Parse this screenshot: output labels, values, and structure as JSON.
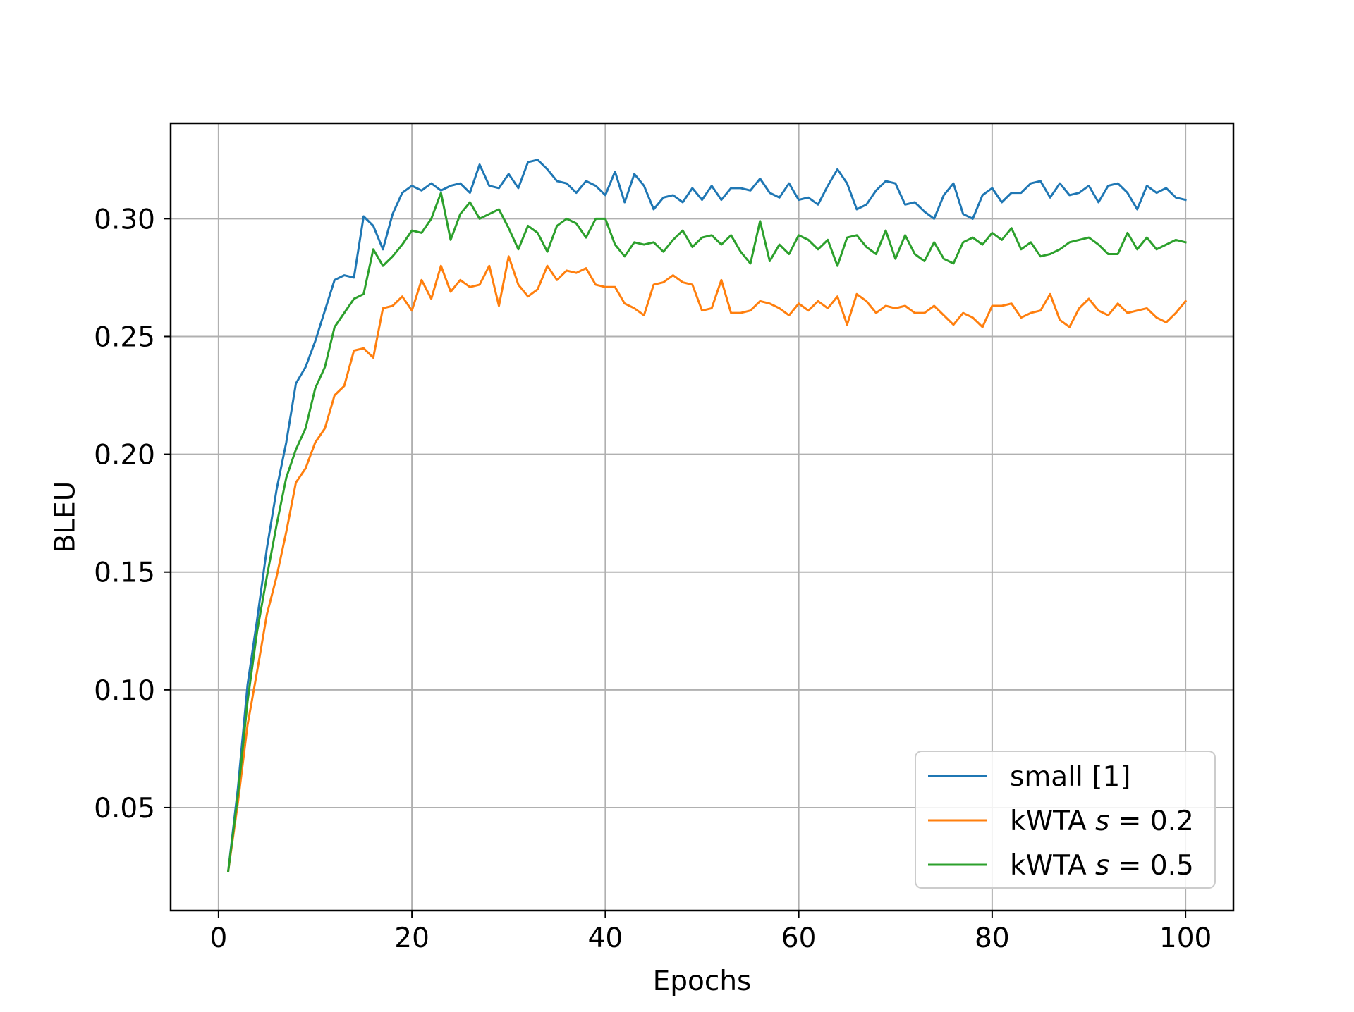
{
  "chart_data": {
    "type": "line",
    "title": "",
    "xlabel": "Epochs",
    "ylabel": "BLEU",
    "xlim": [
      -4.95,
      104.95
    ],
    "ylim": [
      0.0063,
      0.3405
    ],
    "xticks": [
      0,
      20,
      40,
      60,
      80,
      100
    ],
    "xtick_labels": [
      "0",
      "20",
      "40",
      "60",
      "80",
      "100"
    ],
    "yticks": [
      0.05,
      0.1,
      0.15,
      0.2,
      0.25,
      0.3
    ],
    "ytick_labels": [
      "0.05",
      "0.10",
      "0.15",
      "0.20",
      "0.25",
      "0.30"
    ],
    "grid": true,
    "legend_position": "lower-right",
    "x": [
      1,
      2,
      3,
      4,
      5,
      6,
      7,
      8,
      9,
      10,
      11,
      12,
      13,
      14,
      15,
      16,
      17,
      18,
      19,
      20,
      21,
      22,
      23,
      24,
      25,
      26,
      27,
      28,
      29,
      30,
      31,
      32,
      33,
      34,
      35,
      36,
      37,
      38,
      39,
      40,
      41,
      42,
      43,
      44,
      45,
      46,
      47,
      48,
      49,
      50,
      51,
      52,
      53,
      54,
      55,
      56,
      57,
      58,
      59,
      60,
      61,
      62,
      63,
      64,
      65,
      66,
      67,
      68,
      69,
      70,
      71,
      72,
      73,
      74,
      75,
      76,
      77,
      78,
      79,
      80,
      81,
      82,
      83,
      84,
      85,
      86,
      87,
      88,
      89,
      90,
      91,
      92,
      93,
      94,
      95,
      96,
      97,
      98,
      99,
      100
    ],
    "series": [
      {
        "name": "small [1]",
        "color": "#1f77b4",
        "values": [
          0.023,
          0.058,
          0.102,
          0.13,
          0.16,
          0.185,
          0.205,
          0.23,
          0.237,
          0.248,
          0.261,
          0.274,
          0.276,
          0.275,
          0.301,
          0.297,
          0.287,
          0.302,
          0.311,
          0.314,
          0.312,
          0.315,
          0.312,
          0.314,
          0.315,
          0.311,
          0.323,
          0.314,
          0.313,
          0.319,
          0.313,
          0.324,
          0.325,
          0.321,
          0.316,
          0.315,
          0.311,
          0.316,
          0.314,
          0.31,
          0.32,
          0.307,
          0.319,
          0.314,
          0.304,
          0.309,
          0.31,
          0.307,
          0.313,
          0.308,
          0.314,
          0.308,
          0.313,
          0.313,
          0.312,
          0.317,
          0.311,
          0.309,
          0.315,
          0.308,
          0.309,
          0.306,
          0.314,
          0.321,
          0.315,
          0.304,
          0.306,
          0.312,
          0.316,
          0.315,
          0.306,
          0.307,
          0.303,
          0.3,
          0.31,
          0.315,
          0.302,
          0.3,
          0.31,
          0.313,
          0.307,
          0.311,
          0.311,
          0.315,
          0.316,
          0.309,
          0.315,
          0.31,
          0.311,
          0.314,
          0.307,
          0.314,
          0.315,
          0.311,
          0.304,
          0.314,
          0.311,
          0.313,
          0.309,
          0.308
        ]
      },
      {
        "name": "kWTA s=0.2",
        "color": "#ff7f0e",
        "values": [
          0.023,
          0.052,
          0.085,
          0.108,
          0.132,
          0.148,
          0.167,
          0.188,
          0.194,
          0.205,
          0.211,
          0.225,
          0.229,
          0.244,
          0.245,
          0.241,
          0.262,
          0.263,
          0.267,
          0.261,
          0.274,
          0.266,
          0.28,
          0.269,
          0.274,
          0.271,
          0.272,
          0.28,
          0.263,
          0.284,
          0.272,
          0.267,
          0.27,
          0.28,
          0.274,
          0.278,
          0.277,
          0.279,
          0.272,
          0.271,
          0.271,
          0.264,
          0.262,
          0.259,
          0.272,
          0.273,
          0.276,
          0.273,
          0.272,
          0.261,
          0.262,
          0.274,
          0.26,
          0.26,
          0.261,
          0.265,
          0.264,
          0.262,
          0.259,
          0.264,
          0.261,
          0.265,
          0.262,
          0.267,
          0.255,
          0.268,
          0.265,
          0.26,
          0.263,
          0.262,
          0.263,
          0.26,
          0.26,
          0.263,
          0.259,
          0.255,
          0.26,
          0.258,
          0.254,
          0.263,
          0.263,
          0.264,
          0.258,
          0.26,
          0.261,
          0.268,
          0.257,
          0.254,
          0.262,
          0.266,
          0.261,
          0.259,
          0.264,
          0.26,
          0.261,
          0.262,
          0.258,
          0.256,
          0.26,
          0.265
        ]
      },
      {
        "name": "kWTA s=0.5",
        "color": "#2ca02c",
        "values": [
          0.023,
          0.055,
          0.095,
          0.125,
          0.148,
          0.17,
          0.19,
          0.202,
          0.211,
          0.228,
          0.237,
          0.254,
          0.26,
          0.266,
          0.268,
          0.287,
          0.28,
          0.284,
          0.289,
          0.295,
          0.294,
          0.3,
          0.311,
          0.291,
          0.302,
          0.307,
          0.3,
          0.302,
          0.304,
          0.296,
          0.287,
          0.297,
          0.294,
          0.286,
          0.297,
          0.3,
          0.298,
          0.292,
          0.3,
          0.3,
          0.289,
          0.284,
          0.29,
          0.289,
          0.29,
          0.286,
          0.291,
          0.295,
          0.288,
          0.292,
          0.293,
          0.289,
          0.293,
          0.286,
          0.281,
          0.299,
          0.282,
          0.289,
          0.285,
          0.293,
          0.291,
          0.287,
          0.291,
          0.28,
          0.292,
          0.293,
          0.288,
          0.285,
          0.295,
          0.283,
          0.293,
          0.285,
          0.282,
          0.29,
          0.283,
          0.281,
          0.29,
          0.292,
          0.289,
          0.294,
          0.291,
          0.296,
          0.287,
          0.29,
          0.284,
          0.285,
          0.287,
          0.29,
          0.291,
          0.292,
          0.289,
          0.285,
          0.285,
          0.294,
          0.287,
          0.292,
          0.287,
          0.289,
          0.291,
          0.29
        ]
      }
    ],
    "legend": {
      "entries": [
        {
          "text": "small [1]",
          "prefix": "small [1]",
          "italic": "",
          "suffix": ""
        },
        {
          "text": "kWTA s = 0.2",
          "prefix": "kWTA ",
          "italic": "s",
          "suffix": " = 0.2"
        },
        {
          "text": "kWTA s = 0.5",
          "prefix": "kWTA ",
          "italic": "s",
          "suffix": " = 0.5"
        }
      ]
    }
  }
}
